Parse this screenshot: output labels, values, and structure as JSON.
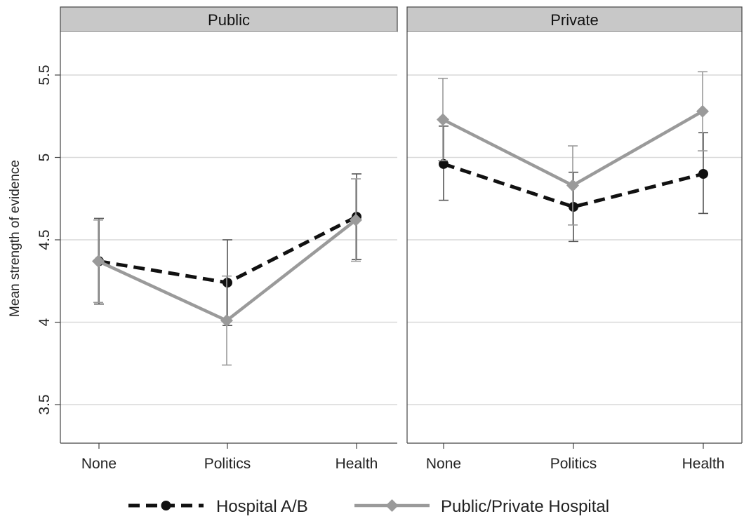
{
  "chart_data": {
    "type": "line",
    "ylabel": "Mean strength of evidence",
    "ylim": [
      3.3,
      5.8
    ],
    "yticks": [
      3.5,
      4,
      4.5,
      5,
      5.5
    ],
    "ytick_labels": [
      "3.5",
      "4",
      "4.5",
      "5",
      "5.5"
    ],
    "categories": [
      "None",
      "Politics",
      "Health"
    ],
    "grid": "horizontal",
    "legend_position": "bottom",
    "panels": [
      {
        "title": "Public",
        "series": [
          {
            "name": "Hospital A/B",
            "color": "#111111",
            "line_style": "dashed",
            "marker": "circle",
            "values": [
              4.37,
              4.24,
              4.64
            ],
            "ci_low": [
              4.11,
              3.98,
              4.38
            ],
            "ci_high": [
              4.63,
              4.5,
              4.9
            ]
          },
          {
            "name": "Public/Private Hospital",
            "color": "#9a9a9a",
            "line_style": "solid",
            "marker": "diamond",
            "values": [
              4.37,
              4.01,
              4.62
            ],
            "ci_low": [
              4.12,
              3.74,
              4.37
            ],
            "ci_high": [
              4.62,
              4.28,
              4.87
            ]
          }
        ]
      },
      {
        "title": "Private",
        "series": [
          {
            "name": "Hospital A/B",
            "color": "#111111",
            "line_style": "dashed",
            "marker": "circle",
            "values": [
              4.96,
              4.7,
              4.9
            ],
            "ci_low": [
              4.74,
              4.49,
              4.66
            ],
            "ci_high": [
              5.19,
              4.91,
              5.15
            ]
          },
          {
            "name": "Public/Private Hospital",
            "color": "#9a9a9a",
            "line_style": "solid",
            "marker": "diamond",
            "values": [
              5.23,
              4.83,
              5.28
            ],
            "ci_low": [
              4.98,
              4.59,
              5.04
            ],
            "ci_high": [
              5.48,
              5.07,
              5.52
            ]
          }
        ]
      }
    ],
    "legend": [
      {
        "label": "Hospital A/B",
        "color": "#111111",
        "line_style": "dashed",
        "marker": "circle"
      },
      {
        "label": "Public/Private Hospital",
        "color": "#9a9a9a",
        "line_style": "solid",
        "marker": "diamond"
      }
    ],
    "colors": {
      "strip_fill": "#c8c8c8",
      "grid": "#d9d9d9",
      "frame": "#444444"
    }
  }
}
